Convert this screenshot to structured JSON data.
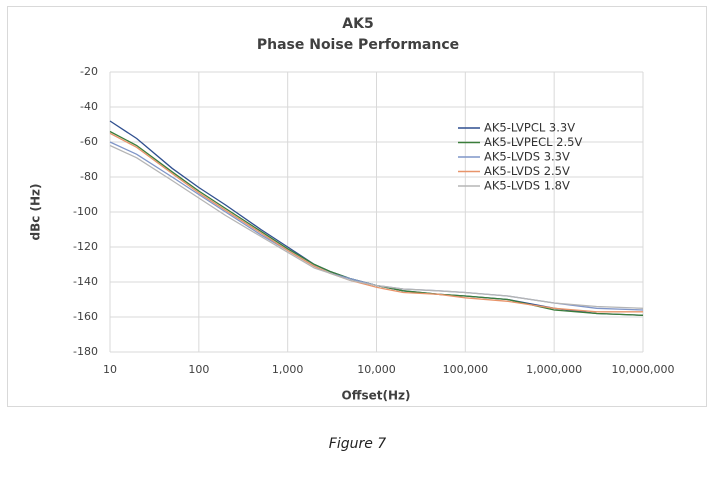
{
  "chart_data": {
    "type": "line",
    "title": "AK5",
    "subtitle": "Phase Noise Performance",
    "x_label": "Offset(Hz)",
    "y_label": "dBc (Hz)",
    "x_scale": "log",
    "grid": true,
    "legend": "upper right",
    "x": [
      10,
      20,
      50,
      100,
      200,
      500,
      1000,
      2000,
      3000,
      5000,
      10000,
      20000,
      50000,
      100000,
      300000,
      1000000,
      3000000,
      10000000
    ],
    "series": [
      {
        "name": "AK5-LVPCL 3.3V",
        "color": "#2f4f8f",
        "values": [
          -48,
          -58,
          -75,
          -86,
          -96,
          -110,
          -120,
          -130,
          -134,
          -138,
          -142,
          -145,
          -147,
          -148,
          -150,
          -155,
          -158,
          -159
        ]
      },
      {
        "name": "AK5-LVPECL 2.5V",
        "color": "#3a7d3a",
        "values": [
          -54,
          -62,
          -77,
          -88,
          -98,
          -111,
          -121,
          -130,
          -134,
          -138,
          -142,
          -145,
          -147,
          -148,
          -150,
          -156,
          -158,
          -159
        ]
      },
      {
        "name": "AK5-LVDS 3.3V",
        "color": "#7f95c8",
        "values": [
          -60,
          -67,
          -80,
          -90,
          -100,
          -113,
          -122,
          -131,
          -135,
          -138,
          -142,
          -144,
          -145,
          -146,
          -148,
          -152,
          -155,
          -156
        ]
      },
      {
        "name": "AK5-LVDS 2.5V",
        "color": "#e8946a",
        "values": [
          -55,
          -63,
          -78,
          -89,
          -99,
          -112,
          -122,
          -131,
          -135,
          -139,
          -143,
          -146,
          -147,
          -149,
          -151,
          -155,
          -157,
          -157
        ]
      },
      {
        "name": "AK5-LVDS 1.8V",
        "color": "#b5b5b5",
        "values": [
          -62,
          -69,
          -82,
          -92,
          -102,
          -114,
          -123,
          -132,
          -135,
          -139,
          -142,
          -144,
          -145,
          -146,
          -148,
          -152,
          -154,
          -155
        ]
      }
    ],
    "xlim": [
      10,
      10000000
    ],
    "xticks": [
      10,
      100,
      {
        "value": 1000,
        "label": "1,000"
      },
      {
        "value": 10000,
        "label": "10,000"
      },
      {
        "value": 100000,
        "label": "100,000"
      },
      {
        "value": 1000000,
        "label": "1,000,000"
      },
      {
        "value": 10000000,
        "label": "10,000,000"
      }
    ],
    "ylim": [
      -180,
      -20
    ],
    "yticks": [
      -180,
      -160,
      -140,
      -120,
      -100,
      -80,
      -60,
      -40,
      -20
    ],
    "caption": "Figure 7"
  }
}
